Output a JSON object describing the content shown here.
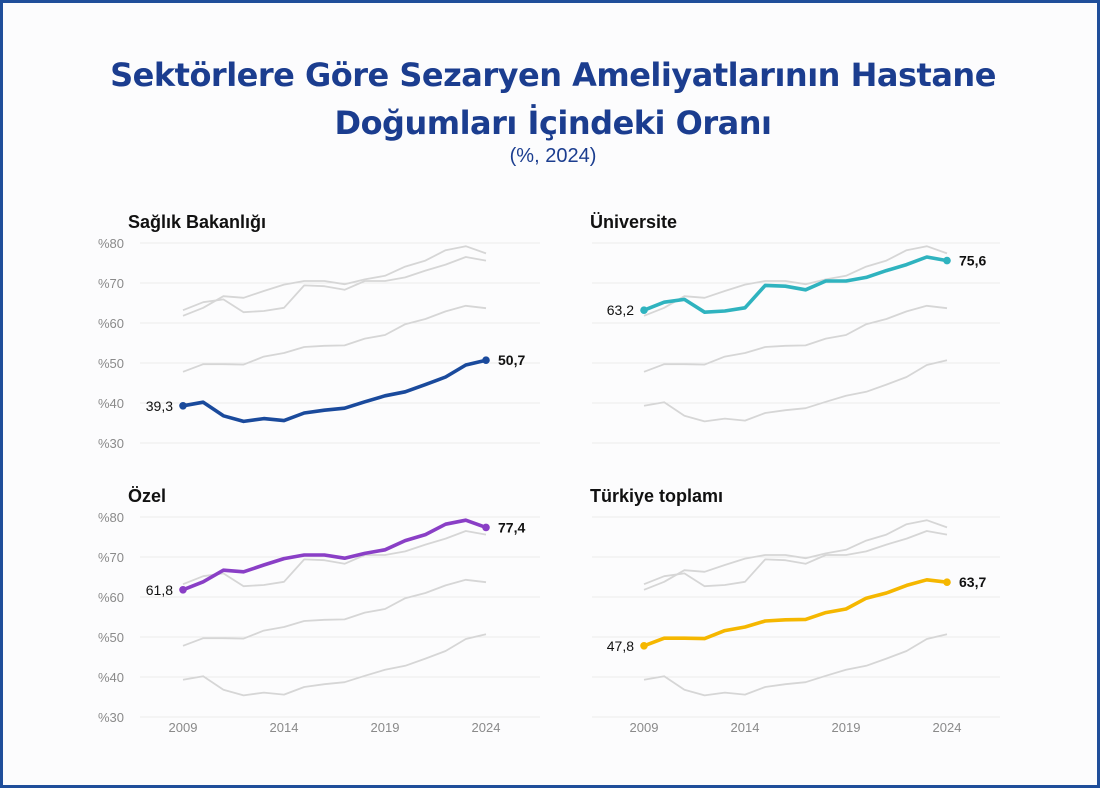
{
  "title_line1": "Sektörlere Göre Sezaryen Ameliyatlarının Hastane",
  "title_line2": "Doğumları İçindeki Oranı",
  "subtitle": "(%, 2024)",
  "colors": {
    "frame": "#1f4e9a",
    "title": "#1b3d8f",
    "background_lines": "#d6d6d6",
    "grid": "#ececec",
    "saglik": "#1a4a9c",
    "universite": "#2fb3bf",
    "ozel": "#8a3fc6",
    "turkiye": "#f5b700"
  },
  "chart_data": {
    "type": "line",
    "layout": "small-multiples",
    "x": [
      2009,
      2010,
      2011,
      2012,
      2013,
      2014,
      2015,
      2016,
      2017,
      2018,
      2019,
      2020,
      2021,
      2022,
      2023,
      2024
    ],
    "x_ticks": [
      "2009",
      "2014",
      "2019",
      "2024"
    ],
    "y_ticks": [
      "%30",
      "%40",
      "%50",
      "%60",
      "%70",
      "%80"
    ],
    "ylim": [
      30,
      80
    ],
    "grid": true,
    "series": [
      {
        "key": "saglik",
        "name": "Sağlık Bakanlığı",
        "values": [
          39.3,
          40.2,
          36.8,
          35.4,
          36.1,
          35.6,
          37.5,
          38.2,
          38.7,
          40.3,
          41.8,
          42.8,
          44.6,
          46.5,
          49.5,
          50.7
        ],
        "start_label": "39,3",
        "end_label": "50,7"
      },
      {
        "key": "universite",
        "name": "Üniversite",
        "values": [
          63.2,
          65.2,
          65.9,
          62.7,
          63.0,
          63.8,
          69.4,
          69.2,
          68.3,
          70.5,
          70.5,
          71.4,
          73.1,
          74.6,
          76.5,
          75.6
        ],
        "start_label": "63,2",
        "end_label": "75,6"
      },
      {
        "key": "ozel",
        "name": "Özel",
        "values": [
          61.8,
          63.8,
          66.7,
          66.3,
          68.0,
          69.6,
          70.5,
          70.5,
          69.7,
          70.9,
          71.8,
          74.1,
          75.6,
          78.2,
          79.2,
          77.4
        ],
        "start_label": "61,8",
        "end_label": "77,4"
      },
      {
        "key": "turkiye",
        "name": "Türkiye toplamı",
        "values": [
          47.8,
          49.7,
          49.7,
          49.6,
          51.6,
          52.5,
          54.0,
          54.3,
          54.4,
          56.1,
          57.0,
          59.7,
          61.0,
          62.9,
          64.3,
          63.7
        ],
        "start_label": "47,8",
        "end_label": "63,7"
      }
    ]
  }
}
